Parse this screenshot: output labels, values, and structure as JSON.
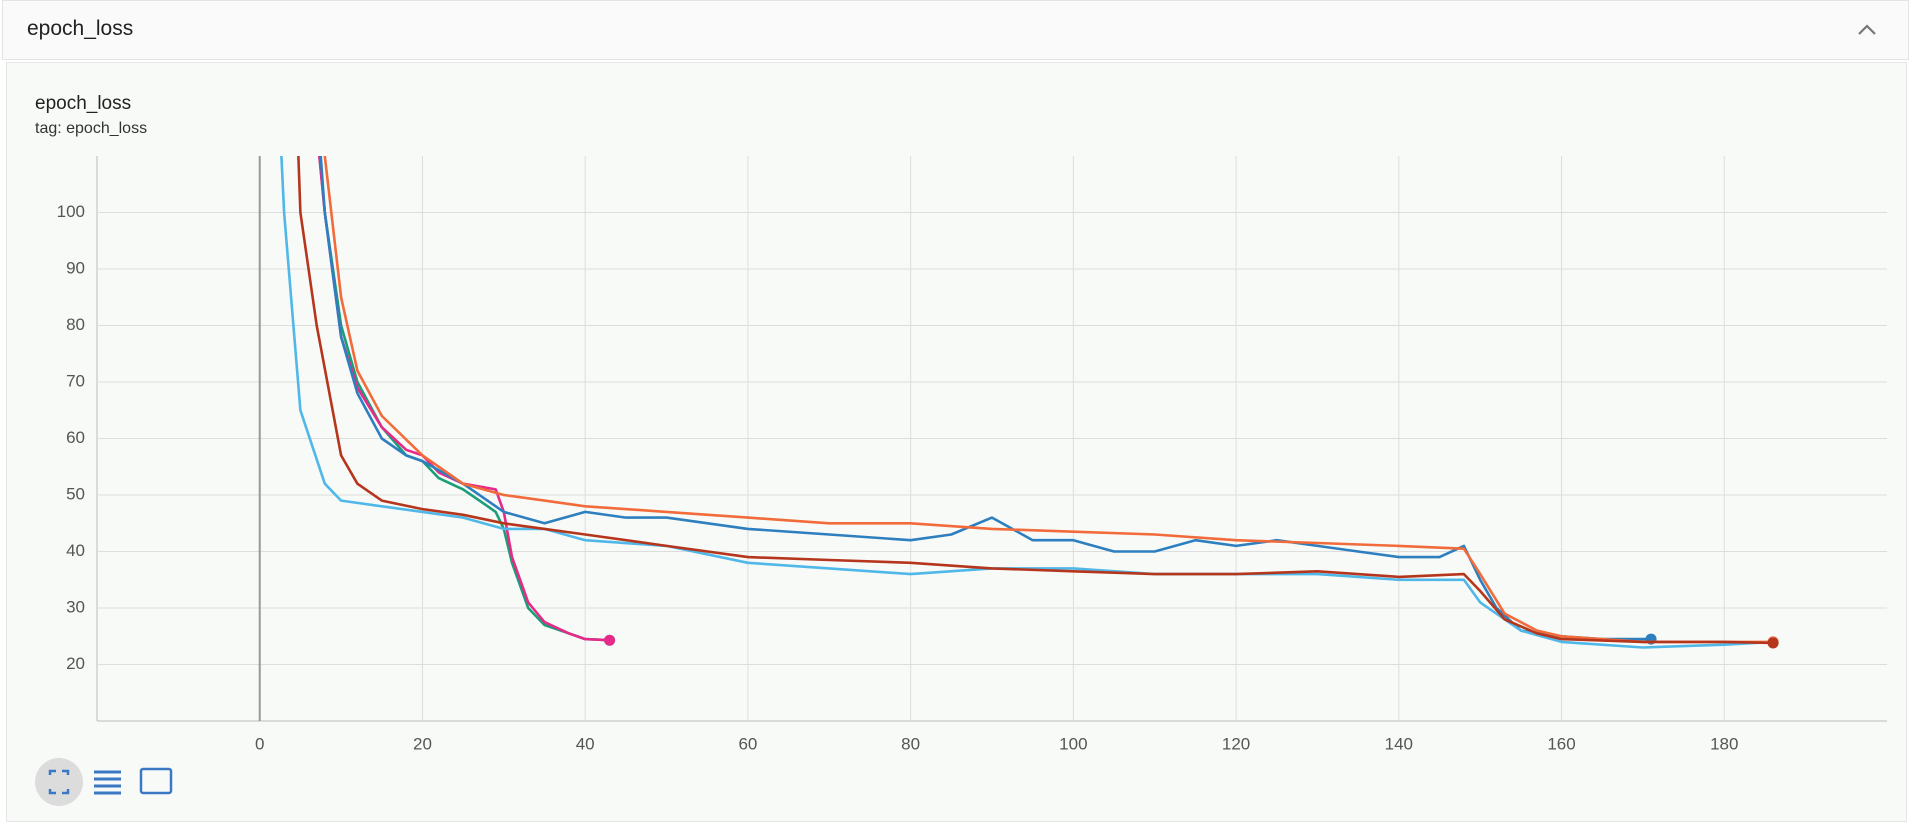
{
  "header": {
    "title": "epoch_loss"
  },
  "card": {
    "title": "epoch_loss",
    "tag": "tag: epoch_loss"
  },
  "chart_data": {
    "type": "line",
    "xlim": [
      -20,
      200
    ],
    "ylim": [
      10,
      110
    ],
    "xticks": [
      0,
      20,
      40,
      60,
      80,
      100,
      120,
      140,
      160,
      180
    ],
    "yticks": [
      20,
      30,
      40,
      50,
      60,
      70,
      80,
      90,
      100
    ],
    "grid": true,
    "series": [
      {
        "color": "#1b9e77",
        "x": [
          6,
          8,
          10,
          12,
          15,
          18,
          20,
          22,
          25,
          27,
          29,
          30,
          31,
          33,
          35,
          38,
          40,
          43
        ],
        "values": [
          130,
          100,
          80,
          70,
          62,
          57,
          56,
          53,
          51,
          49,
          47,
          44,
          38,
          30,
          27,
          25.5,
          24.5,
          24.3
        ]
      },
      {
        "color": "#e7298a",
        "x": [
          6,
          8,
          10,
          12,
          15,
          18,
          20,
          22,
          25,
          27,
          29,
          30,
          31,
          33,
          35,
          38,
          40,
          43
        ],
        "values": [
          130,
          100,
          78,
          69,
          62,
          58,
          57,
          54,
          52,
          51.5,
          51,
          47,
          39,
          31,
          27.5,
          25.5,
          24.5,
          24.3
        ]
      },
      {
        "color": "#2e7fbf",
        "x": [
          6,
          8,
          10,
          12,
          15,
          18,
          20,
          25,
          30,
          35,
          40,
          45,
          50,
          60,
          70,
          80,
          85,
          90,
          95,
          100,
          105,
          110,
          115,
          120,
          125,
          130,
          135,
          140,
          145,
          148,
          150,
          152,
          155,
          160,
          165,
          171
        ],
        "values": [
          140,
          100,
          78,
          68,
          60,
          57,
          56,
          52,
          47,
          45,
          47,
          46,
          46,
          44,
          43,
          42,
          43,
          46,
          42,
          42,
          40,
          40,
          42,
          41,
          42,
          41,
          40,
          39,
          39,
          41,
          35,
          30,
          26,
          25,
          24.5,
          24.5
        ]
      },
      {
        "color": "#4fb8e8",
        "x": [
          2,
          3,
          5,
          8,
          10,
          15,
          20,
          25,
          30,
          35,
          40,
          50,
          60,
          70,
          80,
          90,
          100,
          110,
          120,
          130,
          140,
          148,
          150,
          155,
          160,
          170,
          180,
          186
        ],
        "values": [
          130,
          100,
          65,
          52,
          49,
          48,
          47,
          46,
          44,
          44,
          42,
          41,
          38,
          37,
          36,
          37,
          37,
          36,
          36,
          36,
          35,
          35,
          31,
          26,
          24,
          23,
          23.5,
          24
        ]
      },
      {
        "color": "#f26b3a",
        "x": [
          7,
          8,
          10,
          12,
          15,
          20,
          25,
          30,
          35,
          40,
          50,
          60,
          70,
          80,
          90,
          100,
          110,
          120,
          130,
          140,
          148,
          150,
          153,
          157,
          160,
          170,
          180,
          186
        ],
        "values": [
          140,
          110,
          85,
          72,
          64,
          57,
          52,
          50,
          49,
          48,
          47,
          46,
          45,
          45,
          44,
          43.5,
          43,
          42,
          41.5,
          41,
          40.5,
          36,
          29,
          26,
          25,
          24,
          24,
          24
        ]
      },
      {
        "color": "#b5361c",
        "x": [
          4,
          5,
          7,
          10,
          12,
          15,
          20,
          25,
          30,
          35,
          40,
          50,
          60,
          70,
          80,
          90,
          100,
          110,
          120,
          130,
          140,
          148,
          150,
          153,
          157,
          160,
          170,
          180,
          186
        ],
        "values": [
          140,
          100,
          80,
          57,
          52,
          49,
          47.5,
          46.5,
          45,
          44,
          43,
          41,
          39,
          38.5,
          38,
          37,
          36.5,
          36,
          36,
          36.5,
          35.5,
          36,
          33,
          28,
          25.5,
          24.5,
          24,
          24,
          23.8
        ]
      }
    ]
  }
}
